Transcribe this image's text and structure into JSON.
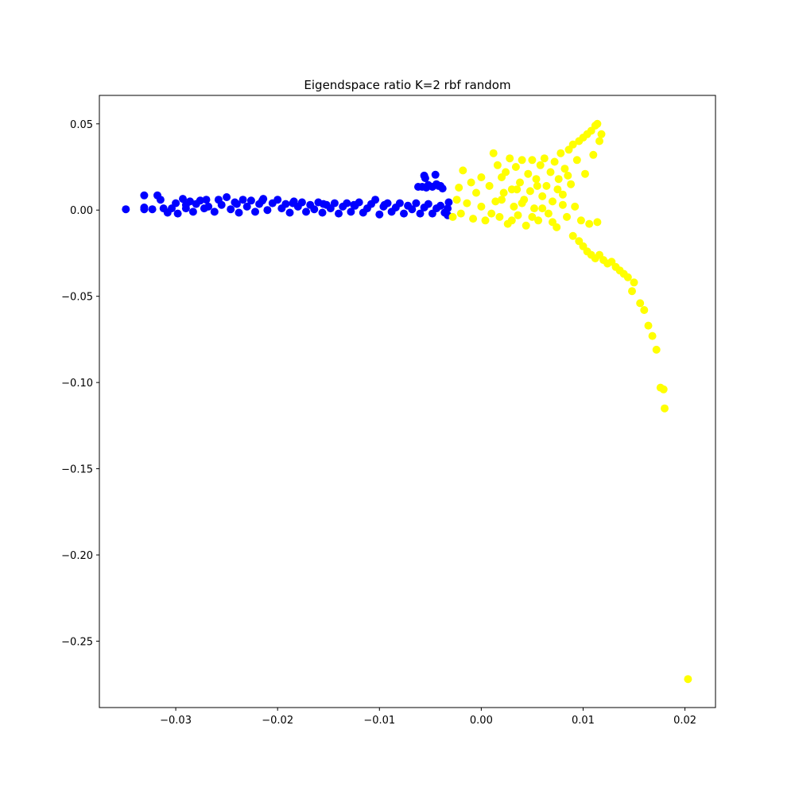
{
  "chart_data": {
    "type": "scatter",
    "title": "Eigendspace ratio K=2 rbf random",
    "xlabel": "",
    "ylabel": "",
    "xlim": [
      -0.0375,
      0.023
    ],
    "ylim": [
      -0.2885,
      0.0665
    ],
    "x_ticks": [
      -0.03,
      -0.02,
      -0.01,
      0.0,
      0.01,
      0.02
    ],
    "x_tick_labels": [
      "−0.03",
      "−0.02",
      "−0.01",
      "0.00",
      "0.01",
      "0.02"
    ],
    "y_ticks": [
      0.05,
      0.0,
      -0.05,
      -0.1,
      -0.15,
      -0.2,
      -0.25
    ],
    "y_tick_labels": [
      "0.05",
      "0.00",
      "−0.05",
      "−0.10",
      "−0.15",
      "−0.20",
      "−0.25"
    ],
    "grid": false,
    "legend": "none",
    "series": [
      {
        "color": "#0000ff",
        "points": [
          [
            -0.0349,
            0.0005
          ],
          [
            -0.0331,
            0.0085
          ],
          [
            -0.0331,
            0.0015
          ],
          [
            -0.0331,
            0.0005
          ],
          [
            -0.0323,
            0.0005
          ],
          [
            -0.0318,
            0.0085
          ],
          [
            -0.0315,
            0.006
          ],
          [
            -0.0312,
            0.001
          ],
          [
            -0.0308,
            -0.0015
          ],
          [
            -0.0304,
            0.001
          ],
          [
            -0.03,
            0.004
          ],
          [
            -0.0298,
            -0.002
          ],
          [
            -0.0293,
            0.0065
          ],
          [
            -0.029,
            0.001
          ],
          [
            -0.0286,
            0.005
          ],
          [
            -0.0283,
            -0.001
          ],
          [
            -0.028,
            0.0035
          ],
          [
            -0.0276,
            0.0055
          ],
          [
            -0.0272,
            0.001
          ],
          [
            -0.0268,
            0.002
          ],
          [
            -0.0262,
            -0.001
          ],
          [
            -0.0258,
            0.006
          ],
          [
            -0.0255,
            0.003
          ],
          [
            -0.025,
            0.0075
          ],
          [
            -0.0246,
            0.0005
          ],
          [
            -0.0242,
            0.0045
          ],
          [
            -0.0238,
            -0.0015
          ],
          [
            -0.0234,
            0.006
          ],
          [
            -0.023,
            0.002
          ],
          [
            -0.0226,
            0.0055
          ],
          [
            -0.0222,
            -0.001
          ],
          [
            -0.0218,
            0.0035
          ],
          [
            -0.0214,
            0.0065
          ],
          [
            -0.021,
            0.0
          ],
          [
            -0.0205,
            0.004
          ],
          [
            -0.02,
            0.006
          ],
          [
            -0.0196,
            0.001
          ],
          [
            -0.0192,
            0.0035
          ],
          [
            -0.0188,
            -0.0015
          ],
          [
            -0.0184,
            0.005
          ],
          [
            -0.018,
            0.002
          ],
          [
            -0.0176,
            0.0045
          ],
          [
            -0.0172,
            -0.001
          ],
          [
            -0.0168,
            0.003
          ],
          [
            -0.0164,
            0.0005
          ],
          [
            -0.016,
            0.0045
          ],
          [
            -0.0156,
            -0.0015
          ],
          [
            -0.0152,
            0.003
          ],
          [
            -0.0148,
            0.001
          ],
          [
            -0.0144,
            0.004
          ],
          [
            -0.014,
            -0.002
          ],
          [
            -0.0136,
            0.002
          ],
          [
            -0.0132,
            0.004
          ],
          [
            -0.0128,
            -0.001
          ],
          [
            -0.0124,
            0.0025
          ],
          [
            -0.012,
            0.0045
          ],
          [
            -0.0116,
            -0.0015
          ],
          [
            -0.0112,
            0.001
          ],
          [
            -0.0108,
            0.0035
          ],
          [
            -0.0104,
            0.006
          ],
          [
            -0.01,
            -0.0025
          ],
          [
            -0.0096,
            0.002
          ],
          [
            -0.0092,
            0.004
          ],
          [
            -0.0088,
            -0.001
          ],
          [
            -0.0084,
            0.0015
          ],
          [
            -0.008,
            0.004
          ],
          [
            -0.0076,
            -0.002
          ],
          [
            -0.0072,
            0.0025
          ],
          [
            -0.0068,
            0.0005
          ],
          [
            -0.0064,
            0.004
          ],
          [
            -0.006,
            -0.002
          ],
          [
            -0.0056,
            0.0015
          ],
          [
            -0.0052,
            0.0035
          ],
          [
            -0.0048,
            -0.002
          ],
          [
            -0.0044,
            0.001
          ],
          [
            -0.004,
            0.0025
          ],
          [
            -0.0036,
            -0.0015
          ],
          [
            -0.0033,
            0.001
          ],
          [
            -0.0032,
            0.0045
          ],
          [
            -0.0033,
            -0.003
          ],
          [
            -0.0056,
            0.02
          ],
          [
            -0.0055,
            0.0185
          ],
          [
            -0.0045,
            0.0205
          ],
          [
            -0.0058,
            0.0135
          ],
          [
            -0.0052,
            0.0145
          ],
          [
            -0.0048,
            0.0135
          ],
          [
            -0.0042,
            0.014
          ],
          [
            -0.0038,
            0.0125
          ],
          [
            -0.0054,
            0.013
          ],
          [
            -0.0062,
            0.0135
          ],
          [
            -0.0044,
            0.015
          ],
          [
            -0.004,
            0.014
          ],
          [
            -0.029,
            0.003
          ],
          [
            -0.027,
            0.006
          ],
          [
            -0.024,
            0.0035
          ],
          [
            -0.0215,
            0.0055
          ],
          [
            -0.0185,
            0.004
          ],
          [
            -0.0155,
            0.0035
          ],
          [
            -0.0125,
            0.003
          ],
          [
            -0.0095,
            0.003
          ]
        ]
      },
      {
        "color": "#ffff00",
        "points": [
          [
            -0.0028,
            -0.004
          ],
          [
            -0.0024,
            0.006
          ],
          [
            -0.0022,
            0.013
          ],
          [
            -0.002,
            -0.002
          ],
          [
            -0.0018,
            0.023
          ],
          [
            -0.0014,
            0.004
          ],
          [
            -0.001,
            0.016
          ],
          [
            -0.0008,
            -0.005
          ],
          [
            -0.0005,
            0.01
          ],
          [
            0.0,
            0.019
          ],
          [
            0.0,
            0.002
          ],
          [
            0.0004,
            -0.006
          ],
          [
            0.0008,
            0.014
          ],
          [
            0.0012,
            0.033
          ],
          [
            0.0014,
            0.005
          ],
          [
            0.0016,
            0.026
          ],
          [
            0.0018,
            -0.004
          ],
          [
            0.002,
            0.019
          ],
          [
            0.0022,
            0.01
          ],
          [
            0.0024,
            0.022
          ],
          [
            0.0026,
            -0.008
          ],
          [
            0.0028,
            0.03
          ],
          [
            0.003,
            0.012
          ],
          [
            0.0032,
            0.002
          ],
          [
            0.0034,
            0.025
          ],
          [
            0.0036,
            -0.003
          ],
          [
            0.0038,
            0.016
          ],
          [
            0.004,
            0.029
          ],
          [
            0.0042,
            0.006
          ],
          [
            0.0044,
            -0.009
          ],
          [
            0.0046,
            0.021
          ],
          [
            0.0048,
            0.011
          ],
          [
            0.005,
            0.029
          ],
          [
            0.0052,
            0.001
          ],
          [
            0.0054,
            0.018
          ],
          [
            0.0056,
            -0.006
          ],
          [
            0.0058,
            0.026
          ],
          [
            0.006,
            0.008
          ],
          [
            0.0062,
            0.03
          ],
          [
            0.0064,
            0.014
          ],
          [
            0.0066,
            -0.002
          ],
          [
            0.0068,
            0.022
          ],
          [
            0.007,
            0.005
          ],
          [
            0.0072,
            0.028
          ],
          [
            0.0074,
            -0.01
          ],
          [
            0.0076,
            0.018
          ],
          [
            0.0078,
            0.033
          ],
          [
            0.008,
            0.009
          ],
          [
            0.0082,
            0.024
          ],
          [
            0.0084,
            -0.004
          ],
          [
            0.0086,
            0.035
          ],
          [
            0.0088,
            0.015
          ],
          [
            0.009,
            0.038
          ],
          [
            0.0092,
            0.002
          ],
          [
            0.0094,
            0.029
          ],
          [
            0.0096,
            0.04
          ],
          [
            0.0098,
            -0.006
          ],
          [
            0.01,
            0.042
          ],
          [
            0.0102,
            0.021
          ],
          [
            0.0104,
            0.044
          ],
          [
            0.0106,
            -0.008
          ],
          [
            0.0108,
            0.046
          ],
          [
            0.011,
            0.032
          ],
          [
            0.0112,
            0.049
          ],
          [
            0.0114,
            0.05
          ],
          [
            0.0116,
            0.04
          ],
          [
            0.0118,
            0.044
          ],
          [
            0.0114,
            -0.007
          ],
          [
            0.009,
            -0.015
          ],
          [
            0.0096,
            -0.018
          ],
          [
            0.01,
            -0.021
          ],
          [
            0.0104,
            -0.024
          ],
          [
            0.0108,
            -0.026
          ],
          [
            0.0112,
            -0.028
          ],
          [
            0.0116,
            -0.026
          ],
          [
            0.012,
            -0.029
          ],
          [
            0.0124,
            -0.031
          ],
          [
            0.0128,
            -0.03
          ],
          [
            0.0132,
            -0.033
          ],
          [
            0.0136,
            -0.035
          ],
          [
            0.014,
            -0.037
          ],
          [
            0.0144,
            -0.039
          ],
          [
            0.015,
            -0.042
          ],
          [
            0.0148,
            -0.047
          ],
          [
            0.0156,
            -0.054
          ],
          [
            0.016,
            -0.058
          ],
          [
            0.0164,
            -0.067
          ],
          [
            0.0168,
            -0.073
          ],
          [
            0.0172,
            -0.081
          ],
          [
            0.0176,
            -0.103
          ],
          [
            0.0179,
            -0.104
          ],
          [
            0.018,
            -0.115
          ],
          [
            0.0203,
            -0.272
          ],
          [
            0.001,
            -0.002
          ],
          [
            0.003,
            -0.006
          ],
          [
            0.005,
            -0.004
          ],
          [
            0.007,
            -0.007
          ],
          [
            0.002,
            0.006
          ],
          [
            0.004,
            0.004
          ],
          [
            0.006,
            0.001
          ],
          [
            0.008,
            0.003
          ],
          [
            0.0035,
            0.012
          ],
          [
            0.0055,
            0.014
          ],
          [
            0.0075,
            0.012
          ],
          [
            0.0085,
            0.02
          ]
        ]
      }
    ]
  }
}
